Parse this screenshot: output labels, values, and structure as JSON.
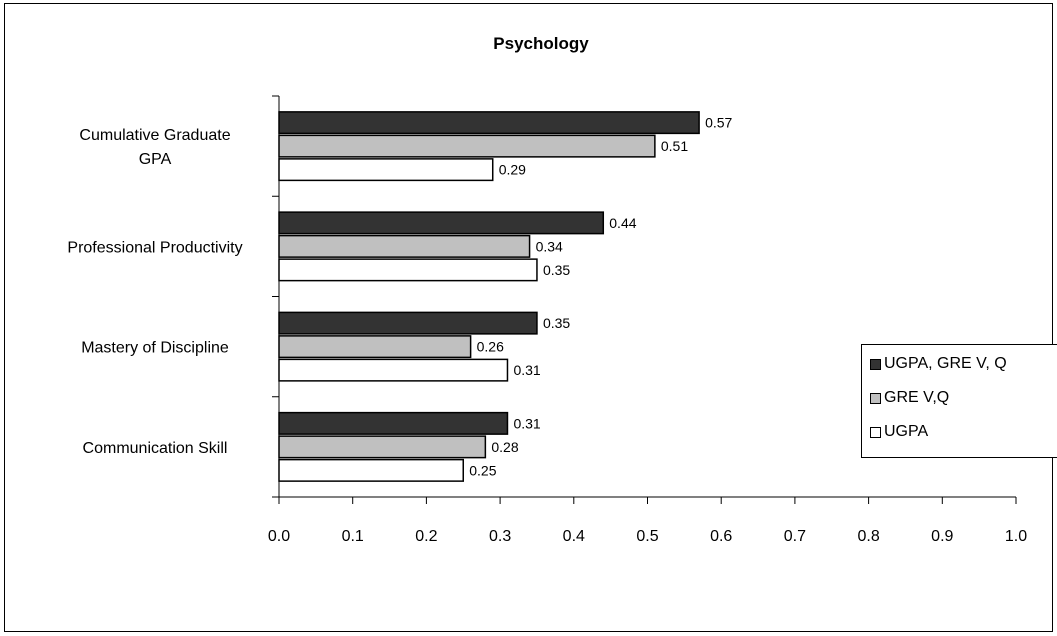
{
  "chart_data": {
    "type": "bar",
    "orientation": "horizontal",
    "title": "Psychology",
    "categories": [
      "Cumulative Graduate GPA",
      "Professional Productivity",
      "Mastery of Discipline",
      "Communication Skill"
    ],
    "category_lines": [
      [
        "Cumulative Graduate",
        "GPA"
      ],
      [
        "Professional Productivity"
      ],
      [
        "Mastery of Discipline"
      ],
      [
        "Communication Skill"
      ]
    ],
    "series": [
      {
        "name": "UGPA, GRE V, Q",
        "color": "#333333",
        "values": [
          0.57,
          0.44,
          0.35,
          0.31
        ],
        "labels": [
          "0.57",
          "0.44",
          "0.35",
          "0.31"
        ]
      },
      {
        "name": "GRE V,Q",
        "color": "#c0c0c0",
        "values": [
          0.51,
          0.34,
          0.26,
          0.28
        ],
        "labels": [
          "0.51",
          "0.34",
          "0.26",
          "0.28"
        ]
      },
      {
        "name": "UGPA",
        "color": "#ffffff",
        "values": [
          0.29,
          0.35,
          0.31,
          0.25
        ],
        "labels": [
          "0.29",
          "0.35",
          "0.31",
          "0.25"
        ]
      }
    ],
    "xlim": [
      0.0,
      1.0
    ],
    "xticks": [
      "0.0",
      "0.1",
      "0.2",
      "0.3",
      "0.4",
      "0.5",
      "0.6",
      "0.7",
      "0.8",
      "0.9",
      "1.0"
    ],
    "xlabel": "",
    "ylabel": "",
    "grid": false,
    "legend_position": "right"
  }
}
